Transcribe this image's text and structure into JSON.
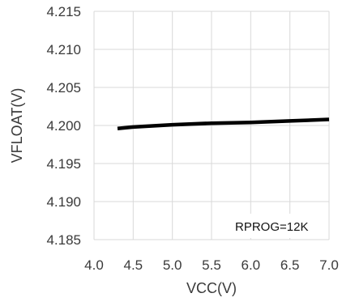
{
  "chart_data": {
    "type": "line",
    "title": "",
    "xlabel": "VCC(V)",
    "ylabel": "VFLOAT(V)",
    "xlim": [
      4.0,
      7.0
    ],
    "ylim": [
      4.185,
      4.215
    ],
    "x_ticks": [
      "4.0",
      "4.5",
      "5.0",
      "5.5",
      "6.0",
      "6.5",
      "7.0"
    ],
    "y_ticks": [
      "4.215",
      "4.210",
      "4.205",
      "4.200",
      "4.195",
      "4.190",
      "4.185"
    ],
    "grid": true,
    "annotation": "RPROG=12K",
    "series": [
      {
        "color": "#000000",
        "x": [
          4.3,
          4.5,
          5.0,
          5.5,
          6.0,
          6.5,
          7.0
        ],
        "y": [
          4.1996,
          4.1998,
          4.2001,
          4.2003,
          4.2004,
          4.2006,
          4.2008
        ]
      }
    ]
  }
}
